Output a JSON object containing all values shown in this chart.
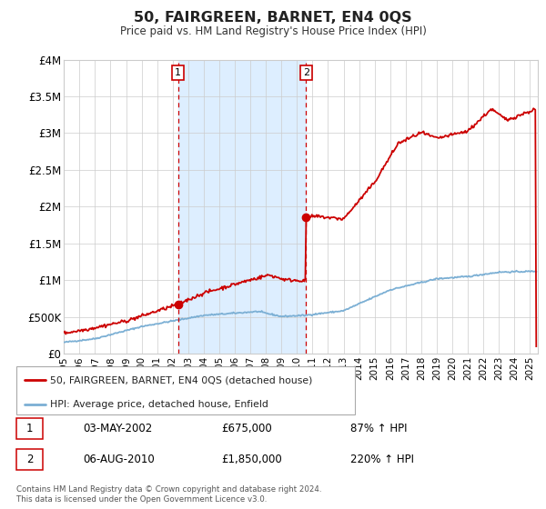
{
  "title": "50, FAIRGREEN, BARNET, EN4 0QS",
  "subtitle": "Price paid vs. HM Land Registry's House Price Index (HPI)",
  "hpi_label": "HPI: Average price, detached house, Enfield",
  "price_label": "50, FAIRGREEN, BARNET, EN4 0QS (detached house)",
  "price_color": "#cc0000",
  "hpi_color": "#7bafd4",
  "shaded_region_color": "#ddeeff",
  "marker1_date_num": 2002.34,
  "marker1_value": 675000,
  "marker1_label": "1",
  "marker1_text": "03-MAY-2002",
  "marker1_price": "£675,000",
  "marker1_pct": "87% ↑ HPI",
  "marker2_date_num": 2010.59,
  "marker2_value": 1850000,
  "marker2_label": "2",
  "marker2_text": "06-AUG-2010",
  "marker2_price": "£1,850,000",
  "marker2_pct": "220% ↑ HPI",
  "xmin": 1995.0,
  "xmax": 2025.5,
  "ymin": 0,
  "ymax": 4000000,
  "yticks": [
    0,
    500000,
    1000000,
    1500000,
    2000000,
    2500000,
    3000000,
    3500000,
    4000000
  ],
  "ytick_labels": [
    "£0",
    "£500K",
    "£1M",
    "£1.5M",
    "£2M",
    "£2.5M",
    "£3M",
    "£3.5M",
    "£4M"
  ],
  "footer1": "Contains HM Land Registry data © Crown copyright and database right 2024.",
  "footer2": "This data is licensed under the Open Government Licence v3.0."
}
